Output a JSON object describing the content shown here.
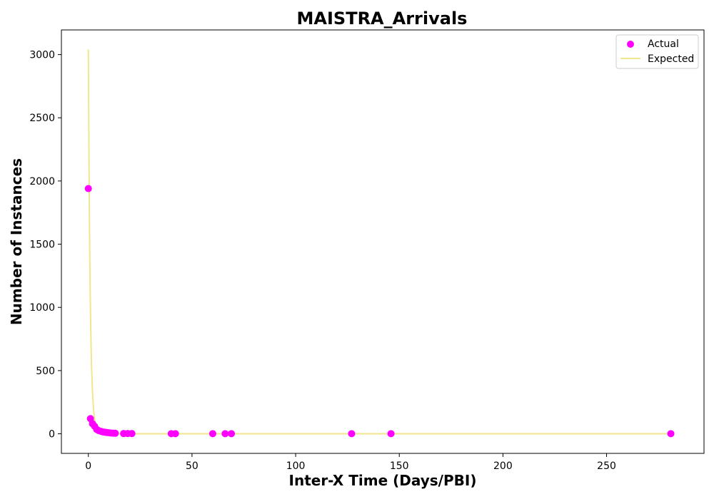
{
  "chart_data": {
    "type": "scatter",
    "title": "MAISTRA_Arrivals",
    "xlabel": "Inter-X Time (Days/PBI)",
    "ylabel": "Number of Instances",
    "xlim": [
      -13,
      297
    ],
    "ylim": [
      -155,
      3195
    ],
    "xticks": [
      0,
      50,
      100,
      150,
      200,
      250
    ],
    "yticks": [
      0,
      500,
      1000,
      1500,
      2000,
      2500,
      3000
    ],
    "grid": false,
    "legend_position": "top-right",
    "colors": {
      "actual": "#ff00ff",
      "expected": "#f0e68c"
    },
    "series": [
      {
        "name": "Actual",
        "kind": "scatter",
        "x": [
          0,
          1,
          2,
          3,
          4,
          5,
          6,
          7,
          8,
          9,
          10,
          11,
          12,
          13,
          17,
          19,
          21,
          40,
          42,
          60,
          66,
          69,
          127,
          146,
          281
        ],
        "y": [
          1940,
          120,
          80,
          60,
          35,
          25,
          20,
          15,
          12,
          10,
          8,
          6,
          5,
          4,
          2,
          2,
          2,
          1,
          1,
          1,
          1,
          1,
          1,
          1,
          1
        ]
      },
      {
        "name": "Expected",
        "kind": "line",
        "x": [
          0,
          0.25,
          0.5,
          0.75,
          1,
          1.25,
          1.5,
          2,
          2.5,
          3,
          4,
          5,
          6,
          8,
          10,
          15,
          20,
          30,
          50,
          100,
          150,
          200,
          250,
          281
        ],
        "y": [
          3040,
          2300,
          1720,
          1300,
          990,
          750,
          560,
          330,
          190,
          110,
          40,
          15,
          5,
          1,
          0,
          0,
          0,
          0,
          0,
          0,
          0,
          0,
          0,
          0
        ]
      }
    ]
  }
}
